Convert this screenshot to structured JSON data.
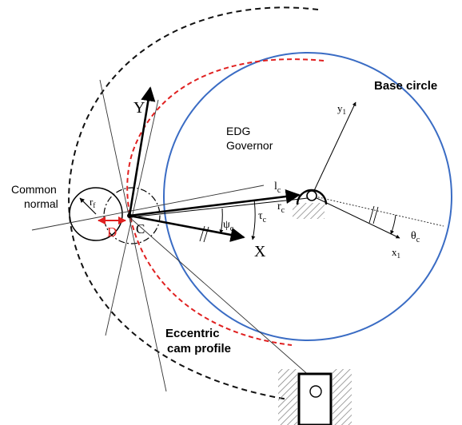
{
  "labels": {
    "base_circle": "Base circle",
    "edg_line1": "EDG",
    "edg_line2": "Governor",
    "common_line1": "Common",
    "common_line2": "normal",
    "eccentric_line1": "Eccentric",
    "eccentric_line2": "cam profile",
    "axis_Y": "Y",
    "axis_X": "X",
    "y1_base": "y",
    "y1_sub": "1",
    "x1_base": "x",
    "x1_sub": "1",
    "lc_base": "l",
    "lc_sub": "c",
    "rc_base": "r",
    "rc_sub": "c",
    "tau_base": "τ",
    "tau_sub": "c",
    "psi_base": "ψ",
    "psi_sub": "c",
    "theta_base": "θ",
    "theta_sub": "c",
    "rf_base": "r",
    "rf_sub": "f",
    "D": "D",
    "C": "C"
  },
  "colors": {
    "base_circle": "#3a6cc4",
    "red_profile": "#e02020",
    "dashed": "#111111",
    "hatch": "#888888"
  }
}
